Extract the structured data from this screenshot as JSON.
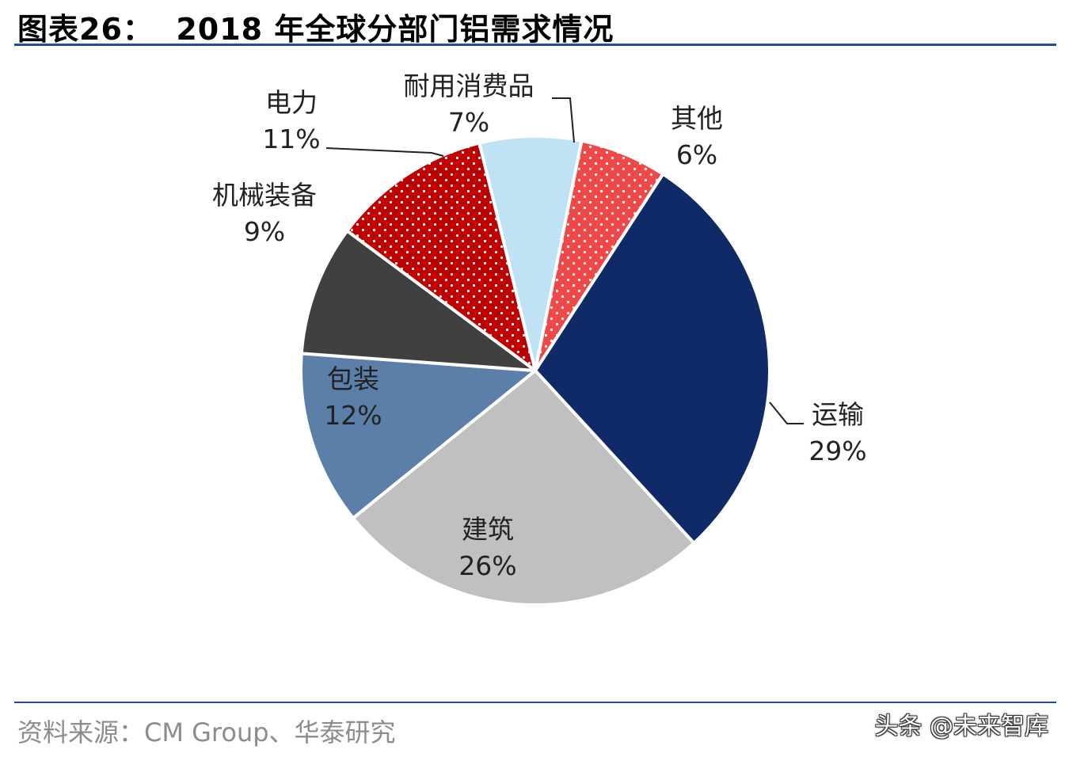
{
  "title": "图表26：  2018 年全球分部门铝需求情况",
  "source": "资料来源：CM Group、华泰研究",
  "watermark": "头条 @未来智库",
  "chart_data": {
    "type": "pie",
    "unit": "%",
    "slices": [
      {
        "label": "运输",
        "value": 29,
        "value_label": "29%",
        "color": "#0f2a66",
        "pattern": "solid"
      },
      {
        "label": "建筑",
        "value": 26,
        "value_label": "26%",
        "color": "#c0c0c0",
        "pattern": "solid"
      },
      {
        "label": "包装",
        "value": 12,
        "value_label": "12%",
        "color": "#5b7fa8",
        "pattern": "solid"
      },
      {
        "label": "机械装备",
        "value": 9,
        "value_label": "9%",
        "color": "#404040",
        "pattern": "solid"
      },
      {
        "label": "电力",
        "value": 11,
        "value_label": "11%",
        "color": "#c00000",
        "pattern": "white-dots"
      },
      {
        "label": "耐用消费品",
        "value": 7,
        "value_label": "7%",
        "color": "#bfe3f5",
        "pattern": "solid"
      },
      {
        "label": "其他",
        "value": 6,
        "value_label": "6%",
        "color": "#f04848",
        "pattern": "white-dots"
      }
    ]
  }
}
